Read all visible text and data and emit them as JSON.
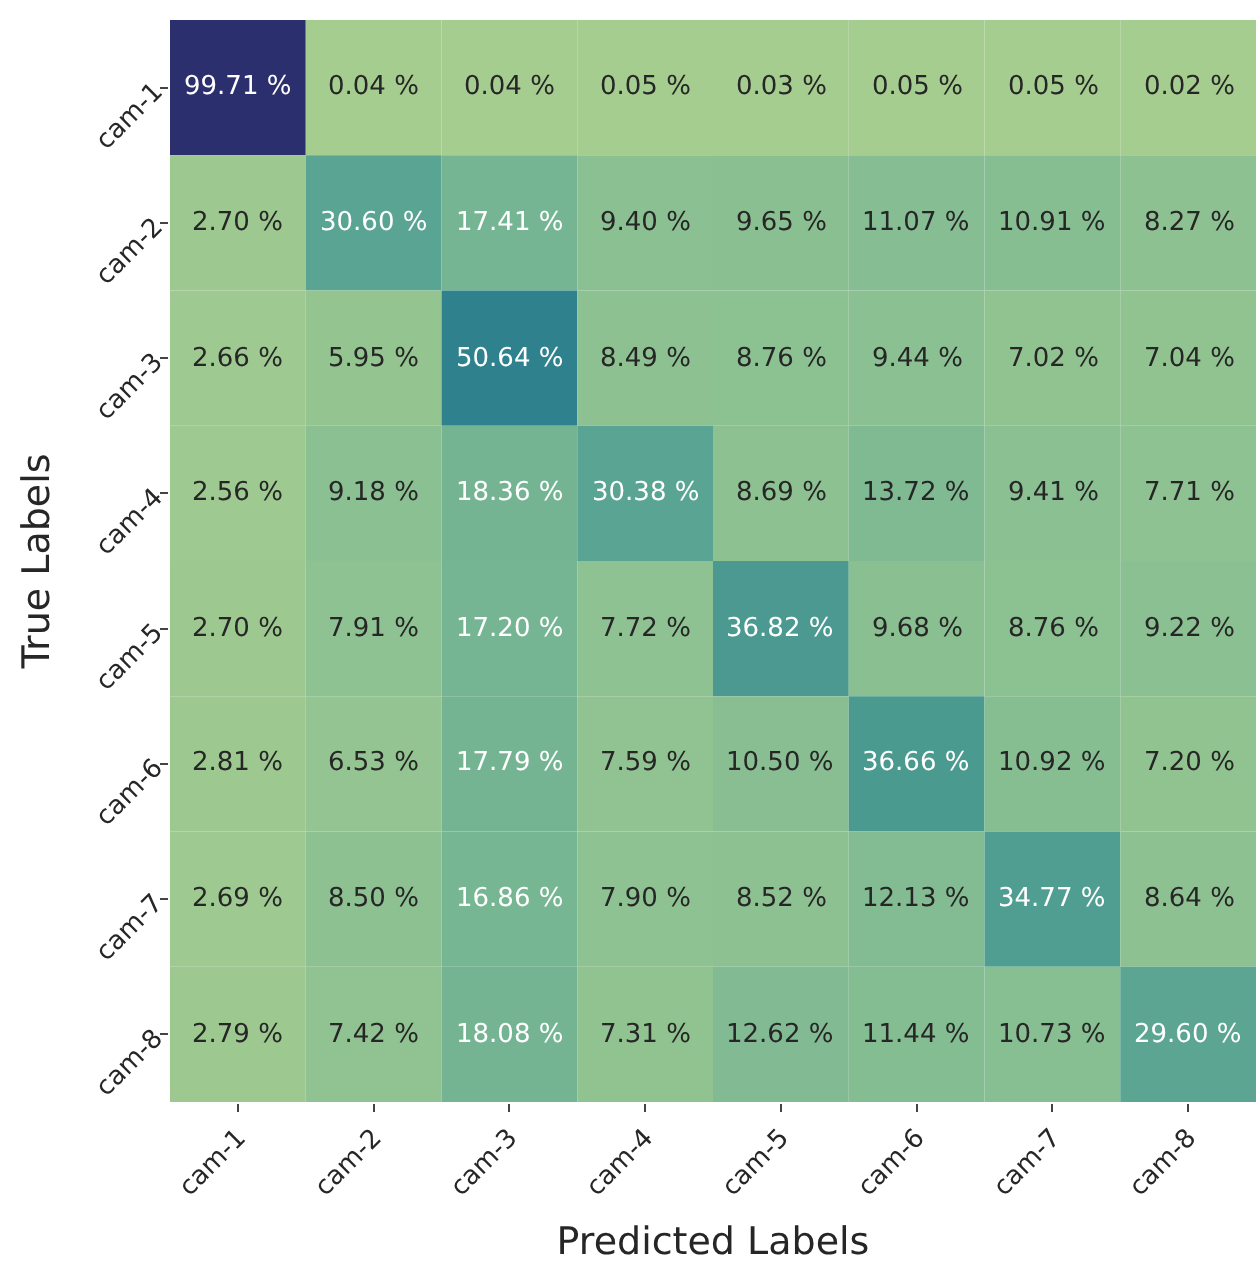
{
  "chart_data": {
    "type": "heatmap",
    "xlabel": "Predicted Labels",
    "ylabel": "True Labels",
    "categories": [
      "cam-1",
      "cam-2",
      "cam-3",
      "cam-4",
      "cam-5",
      "cam-6",
      "cam-7",
      "cam-8"
    ],
    "y_categories": [
      "cam-1",
      "cam-2",
      "cam-3",
      "cam-4",
      "cam-5",
      "cam-6",
      "cam-7",
      "cam-8"
    ],
    "cells": [
      [
        99.71,
        0.04,
        0.04,
        0.05,
        0.03,
        0.05,
        0.05,
        0.02
      ],
      [
        2.7,
        30.6,
        17.41,
        9.4,
        9.65,
        11.07,
        10.91,
        8.27
      ],
      [
        2.66,
        5.95,
        50.64,
        8.49,
        8.76,
        9.44,
        7.02,
        7.04
      ],
      [
        2.56,
        9.18,
        18.36,
        30.38,
        8.69,
        13.72,
        9.41,
        7.71
      ],
      [
        2.7,
        7.91,
        17.2,
        7.72,
        36.82,
        9.68,
        8.76,
        9.22
      ],
      [
        2.81,
        6.53,
        17.79,
        7.59,
        10.5,
        36.66,
        10.92,
        7.2
      ],
      [
        2.69,
        8.5,
        16.86,
        7.9,
        8.52,
        12.13,
        34.77,
        8.64
      ],
      [
        2.79,
        7.42,
        18.08,
        7.31,
        12.62,
        11.44,
        10.73,
        29.6
      ]
    ],
    "cell_labels": [
      [
        "99.71 %",
        "0.04 %",
        "0.04 %",
        "0.05 %",
        "0.03 %",
        "0.05 %",
        "0.05 %",
        "0.02 %"
      ],
      [
        "2.70 %",
        "30.60 %",
        "17.41 %",
        "9.40 %",
        "9.65 %",
        "11.07 %",
        "10.91 %",
        "8.27 %"
      ],
      [
        "2.66 %",
        "5.95 %",
        "50.64 %",
        "8.49 %",
        "8.76 %",
        "9.44 %",
        "7.02 %",
        "7.04 %"
      ],
      [
        "2.56 %",
        "9.18 %",
        "18.36 %",
        "30.38 %",
        "8.69 %",
        "13.72 %",
        "9.41 %",
        "7.71 %"
      ],
      [
        "2.70 %",
        "7.91 %",
        "17.20 %",
        "7.72 %",
        "36.82 %",
        "9.68 %",
        "8.76 %",
        "9.22 %"
      ],
      [
        "2.81 %",
        "6.53 %",
        "17.79 %",
        "7.59 %",
        "10.50 %",
        "36.66 %",
        "10.92 %",
        "7.20 %"
      ],
      [
        "2.69 %",
        "8.50 %",
        "16.86 %",
        "7.90 %",
        "8.52 %",
        "12.13 %",
        "34.77 %",
        "8.64 %"
      ],
      [
        "2.79 %",
        "7.42 %",
        "18.08 %",
        "7.31 %",
        "12.62 %",
        "11.44 %",
        "10.73 %",
        "29.60 %"
      ]
    ]
  }
}
